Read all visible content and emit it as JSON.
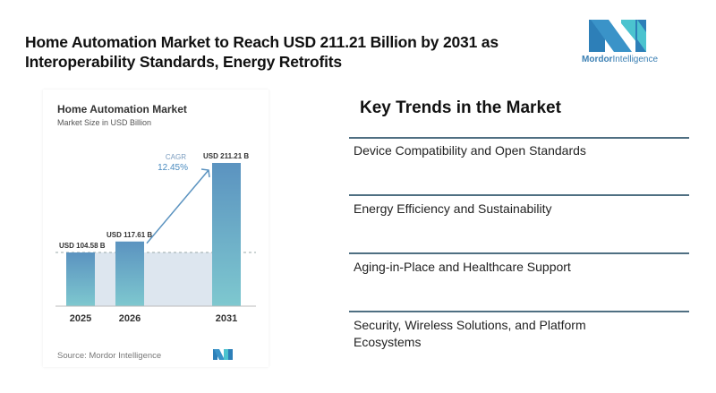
{
  "headline": {
    "line1": "Home Automation Market to Reach USD 211.21 Billion by 2031 as",
    "line2": "Interoperability Standards, Energy Retrofits"
  },
  "logo": {
    "icon": "mordor-intelligence-logo-icon",
    "brand_bold": "Mordor",
    "brand_light": "Intelligence",
    "colors": {
      "dark": "#2d7fb8",
      "light": "#4bc3cf"
    }
  },
  "chart_data": {
    "type": "bar",
    "title": "Home Automation Market",
    "subtitle": "Market Size in USD Billion",
    "categories": [
      "2025",
      "2026",
      "2031"
    ],
    "values": [
      104.58,
      117.61,
      211.21
    ],
    "data_labels": [
      "USD 104.58 B",
      "USD 117.61 B",
      "USD 211.21 B"
    ],
    "annotation": {
      "label": "CAGR",
      "value": "12.45%"
    },
    "xlabel": "",
    "ylabel": "",
    "ylim": [
      0,
      215
    ],
    "grid": false,
    "legend": "none",
    "colors": {
      "bar_top": "#5b93c0",
      "bar_bottom": "#7ec8cf",
      "band": "#dde6ef",
      "annotation": "#4a8bbf"
    },
    "source": "Source: Mordor Intelligence"
  },
  "trends": {
    "title": "Key Trends in the Market",
    "items": [
      "Device Compatibility and Open Standards",
      "Energy Efficiency and Sustainability",
      "Aging-in-Place and Healthcare Support",
      "Security, Wireless Solutions, and Platform Ecosystems"
    ]
  }
}
